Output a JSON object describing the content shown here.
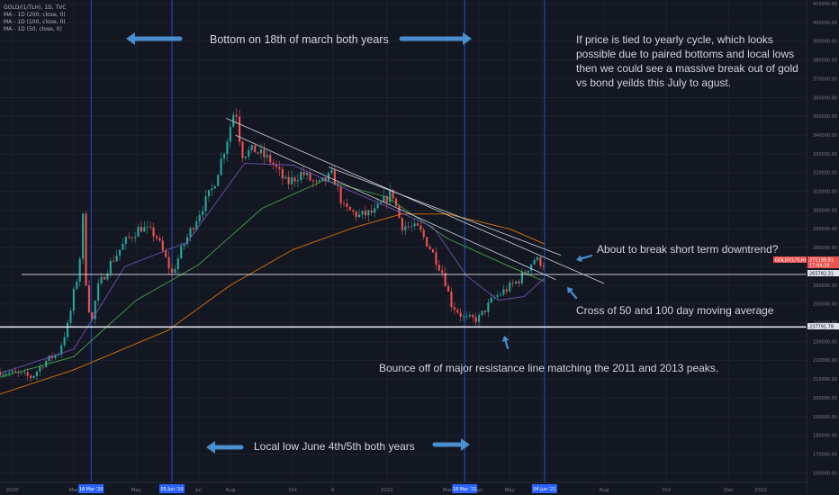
{
  "header": {
    "symbol": "GOLD/(1/TLH), 1D, TVC",
    "ma_200": "MA - 1D (200, close, 0)",
    "ma_100": "MA - 1D (100, close, 0)",
    "ma_50": "MA - 1D (50, close, 0)"
  },
  "annotations": {
    "bottom_text": "Bottom on 18th of march both years",
    "cycle_text_1": "If price is tied to yearly cycle, which looks",
    "cycle_text_2": "possible due to paired bottoms and local lows",
    "cycle_text_3": "then we could see a massive break out of gold",
    "cycle_text_4": "vs bond yeilds this July to agust.",
    "breakout_text": "About to break short term downtrend?",
    "cross_text": "Cross of 50 and 100 day moving average",
    "bounce_text": "Bounce off of major resistance line matching the 2011 and 2013 peaks.",
    "local_low_text": "Local low June 4th/5th both years"
  },
  "price_tags": {
    "symbol_tag": "GOLD/(1/TLH)",
    "last_price": "271198.81",
    "countdown": "17:04:18",
    "line_upper": "265782.31",
    "line_lower": "237791.78"
  },
  "date_tags": [
    "18 Mar '20",
    "05 Jun '20",
    "18 Mar '21",
    "04 Jun '21"
  ],
  "chart_data": {
    "type": "line",
    "title": "GOLD/(1/TLH), 1D, TVC",
    "ylim": [
      155000,
      412000
    ],
    "y_ticks": [
      160000,
      170000,
      180000,
      190000,
      200000,
      210000,
      220000,
      230000,
      240000,
      250000,
      260000,
      270000,
      280000,
      290000,
      300000,
      310000,
      320000,
      330000,
      340000,
      350000,
      360000,
      370000,
      380000,
      390000,
      400000,
      410000
    ],
    "y_tick_labels": [
      "160000.00",
      "170000.00",
      "180000.00",
      "190000.00",
      "200000.00",
      "210000.00",
      "220000.00",
      "230000.00",
      "240000.00",
      "250000.00",
      "260000.00",
      "270000.00",
      "280000.00",
      "290000.00",
      "300000.00",
      "310000.00",
      "320000.00",
      "330000.00",
      "340000.00",
      "350000.00",
      "360000.00",
      "370000.00",
      "380000.00",
      "390000.00",
      "400000.00",
      "410000.00"
    ],
    "x_range": [
      "2019-12-20",
      "2022-02-15"
    ],
    "x_ticks": [
      {
        "label": "2020",
        "date": "2020-01-01"
      },
      {
        "label": "Mar",
        "date": "2020-03-01"
      },
      {
        "label": "May",
        "date": "2020-05-01"
      },
      {
        "label": "Jul",
        "date": "2020-07-01"
      },
      {
        "label": "Aug",
        "date": "2020-08-01"
      },
      {
        "label": "Oct",
        "date": "2020-10-01"
      },
      {
        "label": "9",
        "date": "2020-11-09"
      },
      {
        "label": "2021",
        "date": "2021-01-01"
      },
      {
        "label": "Mar",
        "date": "2021-03-01"
      },
      {
        "label": "Apr",
        "date": "2021-04-01"
      },
      {
        "label": "May",
        "date": "2021-05-01"
      },
      {
        "label": "Jun",
        "date": "2021-06-01"
      },
      {
        "label": "Aug",
        "date": "2021-08-01"
      },
      {
        "label": "Oct",
        "date": "2021-10-01"
      },
      {
        "label": "Dec",
        "date": "2021-12-01"
      },
      {
        "label": "2022",
        "date": "2022-01-01"
      }
    ],
    "price": [
      [
        "2019-12-20",
        214000
      ],
      [
        "2020-01-05",
        213000
      ],
      [
        "2020-01-20",
        211000
      ],
      [
        "2020-02-01",
        219000
      ],
      [
        "2020-02-15",
        224000
      ],
      [
        "2020-02-25",
        240000
      ],
      [
        "2020-03-01",
        256000
      ],
      [
        "2020-03-06",
        268000
      ],
      [
        "2020-03-10",
        296000
      ],
      [
        "2020-03-13",
        262000
      ],
      [
        "2020-03-18",
        238000
      ],
      [
        "2020-03-24",
        258000
      ],
      [
        "2020-04-05",
        271000
      ],
      [
        "2020-04-20",
        283000
      ],
      [
        "2020-05-05",
        291000
      ],
      [
        "2020-05-20",
        287000
      ],
      [
        "2020-06-05",
        266000
      ],
      [
        "2020-06-15",
        280000
      ],
      [
        "2020-07-01",
        298000
      ],
      [
        "2020-07-15",
        312000
      ],
      [
        "2020-07-28",
        336000
      ],
      [
        "2020-08-06",
        356000
      ],
      [
        "2020-08-12",
        330000
      ],
      [
        "2020-08-25",
        332000
      ],
      [
        "2020-09-10",
        326000
      ],
      [
        "2020-09-25",
        314000
      ],
      [
        "2020-10-10",
        320000
      ],
      [
        "2020-10-25",
        313000
      ],
      [
        "2020-11-09",
        319000
      ],
      [
        "2020-11-20",
        301000
      ],
      [
        "2020-12-05",
        297000
      ],
      [
        "2020-12-20",
        299000
      ],
      [
        "2021-01-06",
        310000
      ],
      [
        "2021-01-15",
        292000
      ],
      [
        "2021-02-01",
        290000
      ],
      [
        "2021-02-12",
        280000
      ],
      [
        "2021-02-25",
        266000
      ],
      [
        "2021-03-05",
        250000
      ],
      [
        "2021-03-18",
        242000
      ],
      [
        "2021-03-31",
        242000
      ],
      [
        "2021-04-15",
        253000
      ],
      [
        "2021-04-28",
        258000
      ],
      [
        "2021-05-10",
        263000
      ],
      [
        "2021-05-25",
        274000
      ],
      [
        "2021-06-04",
        271198.81
      ]
    ],
    "series": [
      {
        "name": "MA - 1D (200, close, 0)",
        "color": "#f57c00",
        "values": [
          [
            "2019-12-20",
            202000
          ],
          [
            "2020-03-01",
            215000
          ],
          [
            "2020-06-01",
            236000
          ],
          [
            "2020-08-01",
            260000
          ],
          [
            "2020-10-01",
            279000
          ],
          [
            "2020-12-01",
            291000
          ],
          [
            "2021-01-15",
            298000
          ],
          [
            "2021-03-01",
            298000
          ],
          [
            "2021-05-01",
            290000
          ],
          [
            "2021-06-04",
            282000
          ]
        ]
      },
      {
        "name": "MA - 1D (100, close, 0)",
        "color": "#4caf50",
        "values": [
          [
            "2019-12-20",
            211000
          ],
          [
            "2020-03-01",
            222000
          ],
          [
            "2020-05-01",
            252000
          ],
          [
            "2020-07-01",
            271000
          ],
          [
            "2020-09-01",
            301000
          ],
          [
            "2020-11-01",
            316000
          ],
          [
            "2021-01-01",
            307000
          ],
          [
            "2021-03-01",
            285000
          ],
          [
            "2021-05-01",
            270000
          ],
          [
            "2021-06-04",
            262000
          ]
        ]
      },
      {
        "name": "MA - 1D (50, close, 0)",
        "color": "#7e57c2",
        "values": [
          [
            "2019-12-20",
            213000
          ],
          [
            "2020-03-01",
            226000
          ],
          [
            "2020-04-20",
            270000
          ],
          [
            "2020-06-20",
            283000
          ],
          [
            "2020-08-15",
            325000
          ],
          [
            "2020-10-01",
            324000
          ],
          [
            "2020-11-15",
            313000
          ],
          [
            "2021-01-01",
            302000
          ],
          [
            "2021-02-15",
            291000
          ],
          [
            "2021-03-20",
            265000
          ],
          [
            "2021-04-20",
            252000
          ],
          [
            "2021-05-15",
            254000
          ],
          [
            "2021-06-04",
            264000
          ]
        ]
      }
    ],
    "horizontal_lines": [
      265782.31,
      237791.78
    ],
    "trend_lines": [
      [
        [
          "2020-07-28",
          349000
        ],
        [
          "2021-08-01",
          261000
        ]
      ],
      [
        [
          "2020-08-06",
          340000
        ],
        [
          "2021-06-15",
          263000
        ]
      ],
      [
        [
          "2020-11-05",
          323000
        ],
        [
          "2021-06-20",
          276000
        ]
      ]
    ],
    "vertical_dates": [
      "2020-03-18",
      "2020-06-05",
      "2021-03-18",
      "2021-06-04"
    ],
    "grid": true,
    "legend": "top-left"
  },
  "colors": {
    "background": "#131722",
    "bull": "#26a69a",
    "bear": "#ef5350",
    "accent_blue": "#2962ff",
    "annotation": "#d1d4dc",
    "arrow": "#4a8ed0"
  }
}
